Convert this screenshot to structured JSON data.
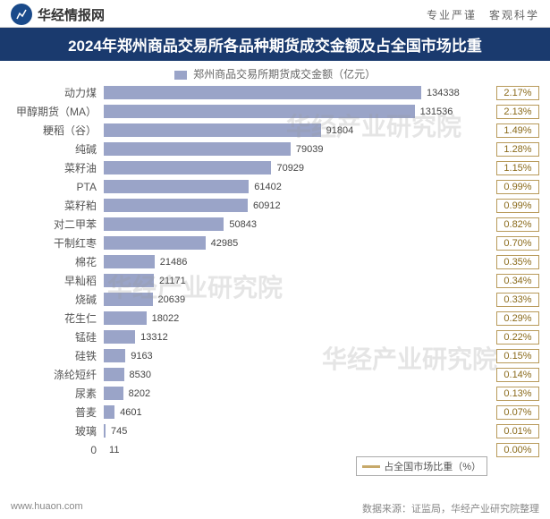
{
  "header": {
    "brand": "华经情报网",
    "slogan": "专业严谨　客观科学"
  },
  "title": "2024年郑州商品交易所各品种期货成交金额及占全国市场比重",
  "legend_top": "郑州商品交易所期货成交金额（亿元）",
  "legend_box": "占全国市场比重（%）",
  "footer": {
    "url": "www.huaon.com",
    "source": "数据来源：证监局，华经产业研究院整理"
  },
  "watermark": "华经产业研究院",
  "chart": {
    "type": "bar-horizontal",
    "bar_color": "#9aa4c8",
    "pct_border_color": "#b89a5a",
    "pct_text_color": "#8a6a1a",
    "title_bg": "#1a3a6e",
    "xmax": 140000,
    "categories": [
      "动力煤",
      "甲醇期货（MA）",
      "粳稻（谷）",
      "纯碱",
      "菜籽油",
      "PTA",
      "菜籽粕",
      "对二甲苯",
      "干制红枣",
      "棉花",
      "早籼稻",
      "烧碱",
      "花生仁",
      "锰硅",
      "硅铁",
      "涤纶短纤",
      "尿素",
      "普麦",
      "玻璃",
      "0"
    ],
    "values": [
      134338,
      131536,
      91804,
      79039,
      70929,
      61402,
      60912,
      50843,
      42985,
      21486,
      21171,
      20639,
      18022,
      13312,
      9163,
      8530,
      8202,
      4601,
      745,
      11
    ],
    "percents": [
      "2.17%",
      "2.13%",
      "1.49%",
      "1.28%",
      "1.15%",
      "0.99%",
      "0.99%",
      "0.82%",
      "0.70%",
      "0.35%",
      "0.34%",
      "0.33%",
      "0.29%",
      "0.22%",
      "0.15%",
      "0.14%",
      "0.13%",
      "0.07%",
      "0.01%",
      "0.00%"
    ]
  }
}
